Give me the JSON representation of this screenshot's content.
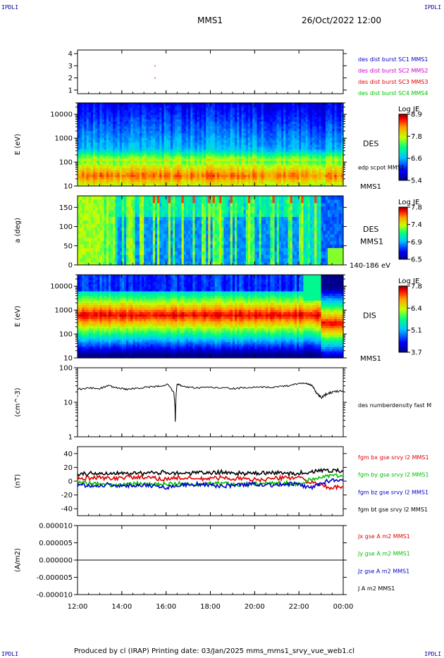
{
  "header": {
    "corner_left_top": "IPDLI",
    "corner_right_top": "IPDLI",
    "corner_left_bottom": "IPDLI",
    "corner_right_bottom": "IPDLI",
    "title": "MMS1",
    "datetime": "26/Oct/2022 12:00"
  },
  "footer": {
    "text": "Produced by cl (IRAP)   Printing date: 03/Jan/2025   mms_mms1_srvy_vue_web1.cl"
  },
  "colors": {
    "blue": "#0000c8",
    "magenta": "#c800c8",
    "red": "#e00000",
    "green": "#00c000",
    "black": "#000000"
  },
  "chart_data": [
    {
      "id": "burst",
      "type": "scatter",
      "ylabel": "",
      "ylim": [
        0.7,
        4.3
      ],
      "yticks": [
        "1",
        "2",
        "3",
        "4"
      ],
      "series": [
        {
          "name": "des dist burst SC1 MMS1",
          "color": "#0000c8",
          "points": []
        },
        {
          "name": "des dist burst SC2 MMS2",
          "color": "#c800c8",
          "points": [
            [
              15.5,
              3
            ]
          ]
        },
        {
          "name": "des dist burst SC3 MMS3",
          "color": "#e00000",
          "points": [
            [
              15.5,
              2
            ]
          ]
        },
        {
          "name": "des dist burst SC4 MMS4",
          "color": "#00c000",
          "points": []
        }
      ]
    },
    {
      "id": "des_energy",
      "type": "heatmap",
      "ylabel": "E (eV)",
      "yscale": "log",
      "ylim": [
        10,
        30000
      ],
      "yticks": [
        "10",
        "100",
        "1000",
        "10000"
      ],
      "right_label": "DES",
      "right_label2": "edp scpot MMS1",
      "bottom_right": "MMS1",
      "colorbar": {
        "title": "Log JE",
        "ticks": [
          "8.9",
          "7.8",
          "6.6",
          "5.4"
        ]
      }
    },
    {
      "id": "des_pitch",
      "type": "heatmap",
      "ylabel": "a (deg)",
      "ylim": [
        0,
        180
      ],
      "yticks": [
        "0",
        "50",
        "100",
        "150"
      ],
      "right_label": "DES",
      "right_label2": "MMS1",
      "bottom_right": "140-186 eV",
      "colorbar": {
        "title": "Log JE",
        "ticks": [
          "7.8",
          "7.4",
          "6.9",
          "6.5"
        ]
      }
    },
    {
      "id": "dis_energy",
      "type": "heatmap",
      "ylabel": "E (eV)",
      "yscale": "log",
      "ylim": [
        10,
        30000
      ],
      "yticks": [
        "10",
        "100",
        "1000",
        "10000"
      ],
      "right_label": "DIS",
      "bottom_right": "MMS1",
      "colorbar": {
        "title": "Log JE",
        "ticks": [
          "7.8",
          "6.4",
          "5.1",
          "3.7"
        ]
      }
    },
    {
      "id": "density",
      "type": "line",
      "ylabel": "(cm^-3)",
      "yscale": "log",
      "ylim": [
        1,
        100
      ],
      "yticks": [
        "1",
        "10",
        "100"
      ],
      "series": [
        {
          "name": "des numberdensity fast M",
          "color": "#000000",
          "x": [
            12.0,
            12.5,
            13.0,
            13.4,
            13.8,
            14.2,
            14.6,
            15.0,
            15.4,
            15.8,
            16.1,
            16.35,
            16.42,
            16.5,
            16.7,
            17.0,
            17.5,
            18.0,
            18.5,
            19.0,
            19.5,
            20.0,
            20.5,
            21.0,
            21.5,
            22.0,
            22.2,
            22.4,
            22.6,
            22.8,
            23.0,
            23.3,
            23.6,
            24.0
          ],
          "y": [
            24,
            26,
            25,
            30,
            26,
            24,
            25,
            27,
            28,
            30,
            33,
            18,
            2.4,
            34,
            30,
            27,
            26,
            27,
            26,
            25,
            26,
            27,
            27,
            28,
            30,
            35,
            36,
            34,
            30,
            18,
            14,
            18,
            20,
            22
          ]
        }
      ]
    },
    {
      "id": "fgm",
      "type": "line",
      "ylabel": "(nT)",
      "ylim": [
        -50,
        50
      ],
      "yticks": [
        "-40",
        "-20",
        "0",
        "20",
        "40"
      ],
      "series": [
        {
          "name": "fgm bx gse srvy l2 MMS1",
          "color": "#e00000",
          "x": [
            12,
            12.5,
            13,
            13.5,
            14,
            14.5,
            15,
            15.5,
            16,
            16.5,
            17,
            17.5,
            18,
            18.5,
            19,
            19.5,
            20,
            20.5,
            21,
            21.5,
            22,
            22.5,
            23,
            23.5,
            24
          ],
          "y": [
            3,
            4,
            5,
            4,
            5,
            6,
            5,
            4,
            3,
            5,
            4,
            3,
            4,
            5,
            4,
            3,
            2,
            3,
            4,
            5,
            6,
            -2,
            -6,
            -10,
            -8
          ]
        },
        {
          "name": "fgm by gse srvy l2 MMS1",
          "color": "#00c000",
          "x": [
            12,
            12.5,
            13,
            13.5,
            14,
            14.5,
            15,
            15.5,
            16,
            16.5,
            17,
            17.5,
            18,
            18.5,
            19,
            19.5,
            20,
            20.5,
            21,
            21.5,
            22,
            22.5,
            23,
            23.5,
            24
          ],
          "y": [
            -2,
            -3,
            -4,
            -5,
            -6,
            -4,
            -3,
            -5,
            -4,
            -3,
            -5,
            -6,
            -4,
            -3,
            -4,
            -5,
            -4,
            -3,
            -2,
            -3,
            -4,
            2,
            6,
            8,
            7
          ]
        },
        {
          "name": "fgm bz gse srvy l2 MMS1",
          "color": "#0000c8",
          "x": [
            12,
            12.5,
            13,
            13.5,
            14,
            14.5,
            15,
            15.5,
            16,
            16.5,
            17,
            17.5,
            18,
            18.5,
            19,
            19.5,
            20,
            20.5,
            21,
            21.5,
            22,
            22.5,
            23,
            23.5,
            24
          ],
          "y": [
            -5,
            -6,
            -7,
            -4,
            -8,
            -6,
            -5,
            -7,
            -9,
            -6,
            -5,
            -4,
            -6,
            -7,
            -6,
            -5,
            -4,
            -5,
            -6,
            -4,
            -5,
            -10,
            -3,
            2,
            3
          ]
        },
        {
          "name": "fgm bt gse srvy l2 MMS1",
          "color": "#000000",
          "x": [
            12,
            12.5,
            13,
            13.5,
            14,
            14.5,
            15,
            15.5,
            16,
            16.5,
            17,
            17.5,
            18,
            18.5,
            19,
            19.5,
            20,
            20.5,
            21,
            21.5,
            22,
            22.5,
            23,
            23.5,
            24
          ],
          "y": [
            10,
            11,
            12,
            11,
            13,
            12,
            11,
            12,
            13,
            12,
            11,
            12,
            12,
            13,
            12,
            11,
            11,
            12,
            12,
            11,
            12,
            13,
            15,
            16,
            14
          ]
        }
      ]
    },
    {
      "id": "current",
      "type": "line",
      "ylabel": "(A/m2)",
      "ylim": [
        -1e-05,
        1e-05
      ],
      "yticks": [
        "-0.000010",
        "-0.000005",
        "0.000000",
        "0.000005",
        "0.000010"
      ],
      "series": [
        {
          "name": "Jx gse A m2 MMS1",
          "color": "#e00000",
          "x": [
            12,
            24
          ],
          "y": [
            0,
            0
          ]
        },
        {
          "name": "Jy gse A m2 MMS1",
          "color": "#00c000",
          "x": [
            12,
            24
          ],
          "y": [
            0,
            0
          ]
        },
        {
          "name": "Jz gse A m2 MMS1",
          "color": "#0000c8",
          "x": [
            12,
            24
          ],
          "y": [
            0,
            0
          ]
        },
        {
          "name": "J A m2 MMS1",
          "color": "#000000",
          "x": [
            12,
            24
          ],
          "y": [
            0,
            0
          ]
        }
      ]
    }
  ],
  "xaxis": {
    "range": [
      12,
      24
    ],
    "ticks": [
      12,
      14,
      16,
      18,
      20,
      22,
      24
    ],
    "tick_labels": [
      "12:00",
      "14:00",
      "16:00",
      "18:00",
      "20:00",
      "22:00",
      "00:00"
    ]
  }
}
